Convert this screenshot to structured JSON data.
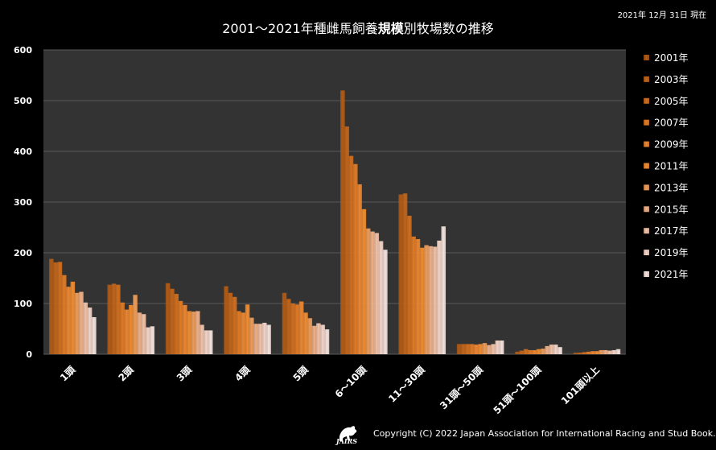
{
  "title_pre": "2001～2021年種雌馬飼養",
  "title_bold": "規模",
  "title_post": "別牧場数の推移",
  "as_of": "2021年 12月 31日 現在",
  "copyright": "Copyright (C) 2022 Japan Association for International Racing and Stud Book.",
  "logo_text": "JAIRS",
  "colors": {
    "background": "#000000",
    "plot_bg": "#333333",
    "grid": "#5a5a5a",
    "series": [
      "#b05a14",
      "#c0641a",
      "#d06e1e",
      "#e07a24",
      "#ea8632",
      "#f08c30",
      "#ec9c5a",
      "#eeb088",
      "#f0c2a8",
      "#f4d4c8",
      "#f4e2dc"
    ]
  },
  "chart_data": {
    "type": "bar",
    "title": "2001～2021年種雌馬飼養規模別牧場数の推移",
    "categories": [
      "1頭",
      "2頭",
      "3頭",
      "4頭",
      "5頭",
      "6～10頭",
      "11～30頭",
      "31頭～50頭",
      "51頭～100頭",
      "101頭以上"
    ],
    "ylim": [
      0,
      600
    ],
    "yticks": [
      0,
      100,
      200,
      300,
      400,
      500,
      600
    ],
    "grid": true,
    "legend_position": "right",
    "series": [
      {
        "name": "2001年",
        "values": [
          188,
          137,
          140,
          134,
          121,
          520,
          315,
          20,
          5,
          3
        ]
      },
      {
        "name": "2003年",
        "values": [
          181,
          139,
          129,
          121,
          109,
          449,
          317,
          20,
          7,
          3
        ]
      },
      {
        "name": "2005年",
        "values": [
          182,
          137,
          119,
          113,
          100,
          391,
          273,
          20,
          10,
          4
        ]
      },
      {
        "name": "2007年",
        "values": [
          156,
          102,
          105,
          85,
          98,
          375,
          232,
          20,
          8,
          5
        ]
      },
      {
        "name": "2009年",
        "values": [
          133,
          88,
          97,
          82,
          104,
          335,
          227,
          19,
          8,
          6
        ]
      },
      {
        "name": "2011年",
        "values": [
          143,
          97,
          85,
          98,
          82,
          286,
          210,
          20,
          10,
          6
        ]
      },
      {
        "name": "2013年",
        "values": [
          121,
          117,
          84,
          72,
          71,
          248,
          215,
          22,
          11,
          8
        ]
      },
      {
        "name": "2015年",
        "values": [
          123,
          82,
          85,
          60,
          56,
          242,
          213,
          18,
          16,
          8
        ]
      },
      {
        "name": "2017年",
        "values": [
          102,
          79,
          58,
          60,
          61,
          239,
          212,
          20,
          19,
          7
        ]
      },
      {
        "name": "2019年",
        "values": [
          92,
          53,
          47,
          62,
          58,
          223,
          224,
          27,
          19,
          8
        ]
      },
      {
        "name": "2021年",
        "values": [
          73,
          55,
          47,
          58,
          49,
          206,
          252,
          27,
          14,
          10
        ]
      }
    ]
  }
}
